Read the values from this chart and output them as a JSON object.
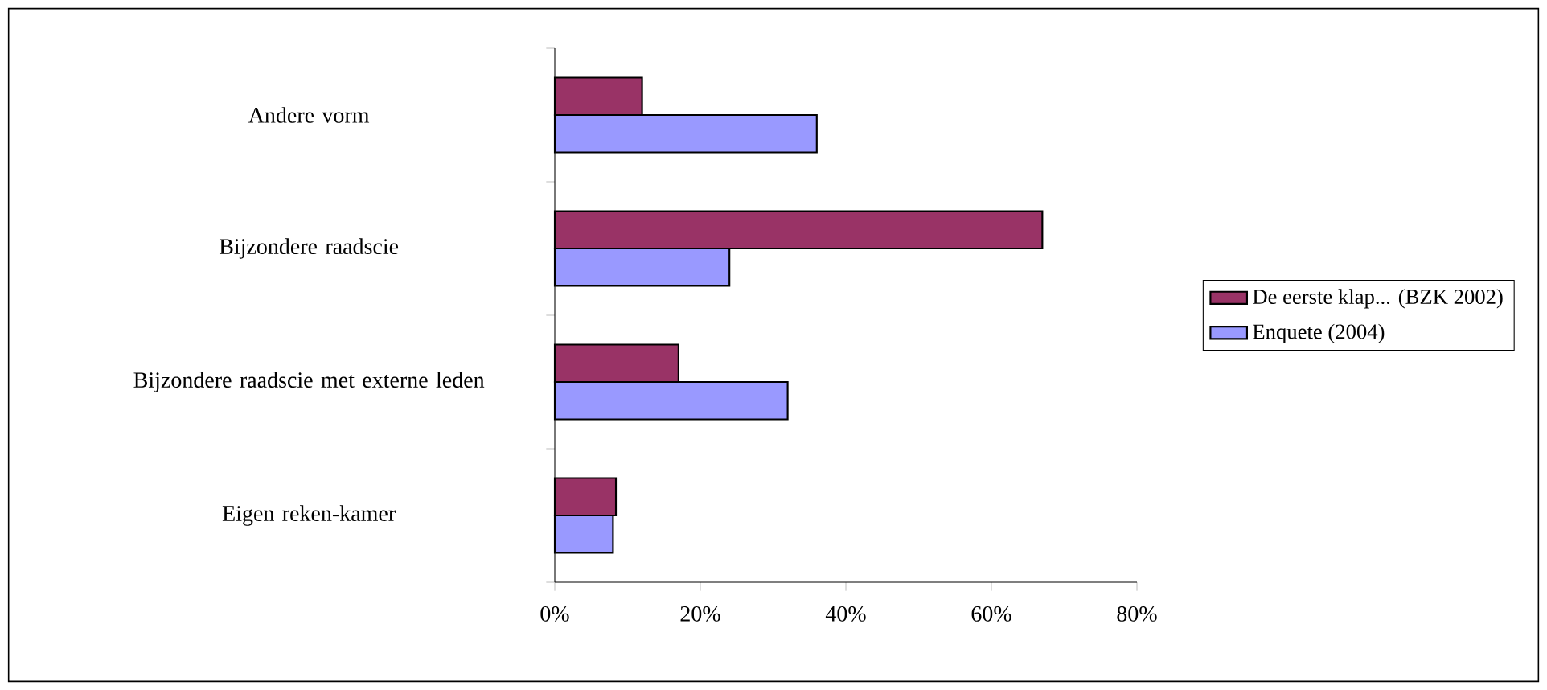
{
  "chart_data": {
    "type": "bar",
    "orientation": "horizontal",
    "categories": [
      "Andere vorm",
      "Bijzondere raadscie",
      "Bijzondere raadscie met externe leden",
      "Eigen reken-kamer"
    ],
    "series": [
      {
        "name": "De eerste klap... (BZK 2002)",
        "color": "#993366",
        "values": [
          12,
          67,
          17,
          8.4
        ]
      },
      {
        "name": "Enquete (2004)",
        "color": "#9999ff",
        "values": [
          36,
          24,
          32,
          8
        ]
      }
    ],
    "xlim": [
      0,
      80
    ],
    "xticks": [
      {
        "value": 0,
        "label": "0%"
      },
      {
        "value": 20,
        "label": "20%"
      },
      {
        "value": 40,
        "label": "40%"
      },
      {
        "value": 60,
        "label": "60%"
      },
      {
        "value": 80,
        "label": "80%"
      }
    ],
    "legend": "right"
  }
}
